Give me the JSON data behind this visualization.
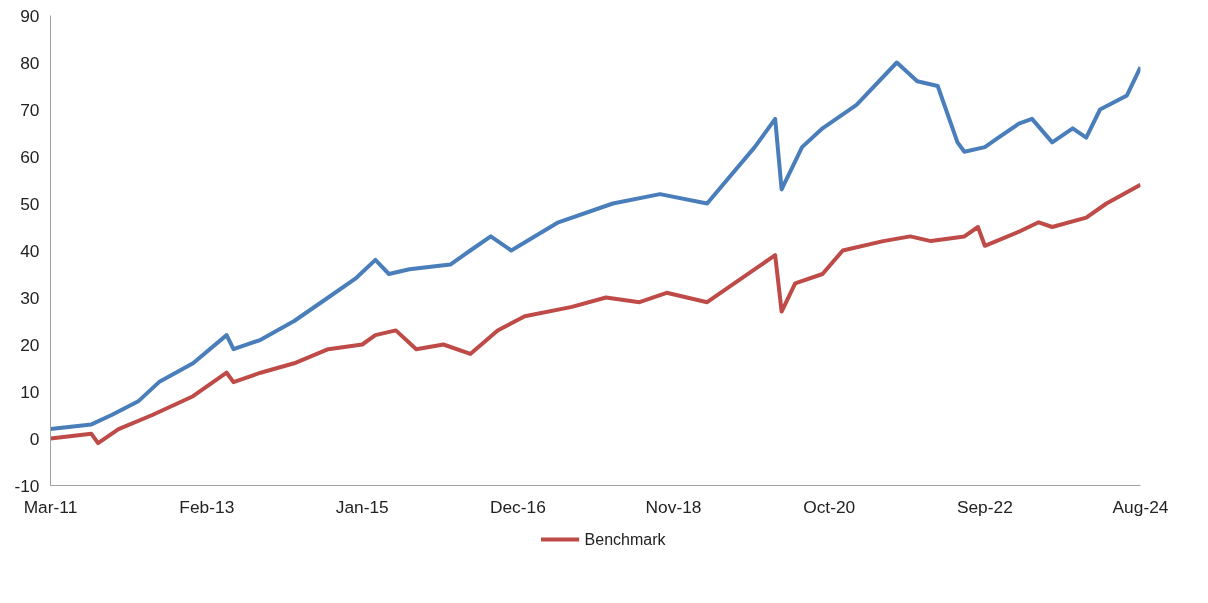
{
  "chart_data": {
    "type": "line",
    "xlim": [
      "2011-03",
      "2024-08"
    ],
    "ylim": [
      -10,
      90
    ],
    "xticks": [
      {
        "value": "2011-03",
        "label": "Mar-11"
      },
      {
        "value": "2013-02",
        "label": "Feb-13"
      },
      {
        "value": "2015-01",
        "label": "Jan-15"
      },
      {
        "value": "2016-12",
        "label": "Dec-16"
      },
      {
        "value": "2018-11",
        "label": "Nov-18"
      },
      {
        "value": "2020-10",
        "label": "Oct-20"
      },
      {
        "value": "2022-09",
        "label": "Sep-22"
      },
      {
        "value": "2024-08",
        "label": "Aug-24"
      }
    ],
    "yticks": [
      -10,
      0,
      10,
      20,
      30,
      40,
      50,
      60,
      70,
      80,
      90
    ],
    "grid": false,
    "legend": "bottom",
    "line_style": "solid",
    "marker": "none",
    "series": [
      {
        "color": "#4a7ebb",
        "x": [
          "2011-03",
          "2011-09",
          "2011-12",
          "2012-04",
          "2012-07",
          "2012-12",
          "2013-05",
          "2013-06",
          "2013-10",
          "2014-03",
          "2014-08",
          "2014-12",
          "2015-03",
          "2015-05",
          "2015-08",
          "2016-02",
          "2016-05",
          "2016-08",
          "2016-11",
          "2017-06",
          "2018-02",
          "2018-09",
          "2019-04",
          "2019-11",
          "2020-02",
          "2020-03",
          "2020-06",
          "2020-09",
          "2021-02",
          "2021-08",
          "2021-11",
          "2022-02",
          "2022-05",
          "2022-06",
          "2022-09",
          "2022-11",
          "2023-02",
          "2023-04",
          "2023-07",
          "2023-10",
          "2023-12",
          "2024-02",
          "2024-06",
          "2024-08"
        ],
        "values": [
          2,
          3,
          5,
          8,
          12,
          16,
          22,
          19,
          21,
          25,
          30,
          34,
          38,
          35,
          36,
          37,
          40,
          43,
          40,
          46,
          50,
          52,
          50,
          62,
          68,
          53,
          62,
          66,
          71,
          80,
          76,
          75,
          63,
          61,
          62,
          64,
          67,
          68,
          63,
          66,
          64,
          70,
          73,
          79
        ]
      },
      {
        "name": "Benchmark",
        "color": "#be4b48",
        "x": [
          "2011-03",
          "2011-09",
          "2011-10",
          "2012-01",
          "2012-06",
          "2012-12",
          "2013-05",
          "2013-06",
          "2013-10",
          "2014-03",
          "2014-08",
          "2015-01",
          "2015-03",
          "2015-06",
          "2015-09",
          "2016-01",
          "2016-05",
          "2016-09",
          "2017-01",
          "2017-08",
          "2018-01",
          "2018-06",
          "2018-10",
          "2019-04",
          "2019-09",
          "2020-02",
          "2020-03",
          "2020-05",
          "2020-09",
          "2020-12",
          "2021-06",
          "2021-10",
          "2022-01",
          "2022-06",
          "2022-08",
          "2022-09",
          "2023-02",
          "2023-05",
          "2023-07",
          "2023-12",
          "2024-03",
          "2024-08"
        ],
        "values": [
          0,
          1,
          -1,
          2,
          5,
          9,
          14,
          12,
          14,
          16,
          19,
          20,
          22,
          23,
          19,
          20,
          18,
          23,
          26,
          28,
          30,
          29,
          31,
          29,
          34,
          39,
          27,
          33,
          35,
          40,
          42,
          43,
          42,
          43,
          45,
          41,
          44,
          46,
          45,
          47,
          50,
          54
        ]
      }
    ]
  }
}
